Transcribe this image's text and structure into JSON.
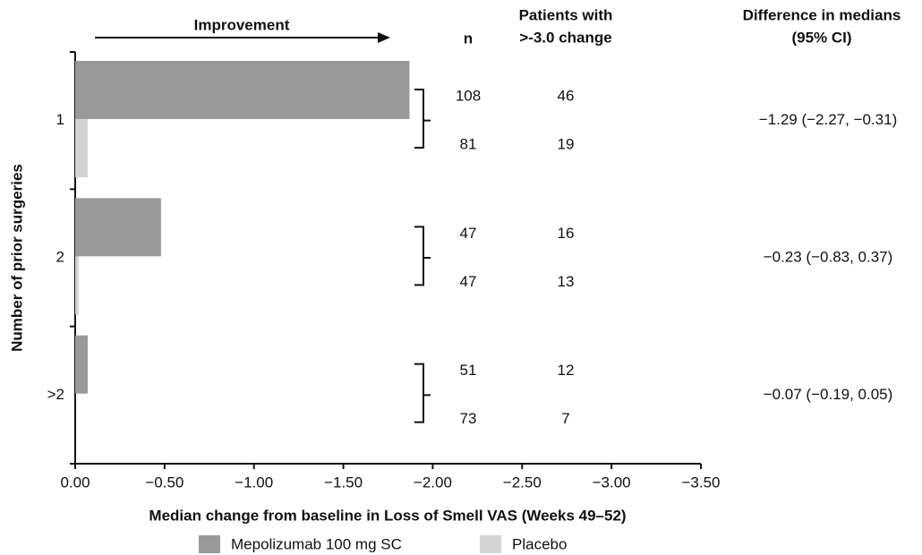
{
  "chart_data": {
    "type": "hbar",
    "annotation": "Improvement",
    "xlabel": "Median change from baseline in Loss of Smell VAS (Weeks 49–52)",
    "ylabel": "Number of prior surgeries",
    "categories": [
      "1",
      "2",
      ">2"
    ],
    "series": [
      {
        "name": "Mepolizumab 100 mg SC",
        "color": "#999999",
        "values": [
          -1.87,
          -0.48,
          -0.07
        ],
        "n": [
          108,
          47,
          51
        ],
        "responders": [
          46,
          16,
          12
        ]
      },
      {
        "name": "Placebo",
        "color": "#d3d3d3",
        "values": [
          -0.07,
          -0.02,
          0
        ],
        "n": [
          81,
          47,
          73
        ],
        "responders": [
          19,
          13,
          7
        ]
      }
    ],
    "n_header": "n",
    "responders_header": [
      "Patients with",
      ">-3.0 change"
    ],
    "difference_header": [
      "Difference in medians",
      "(95% CI)"
    ],
    "differences": [
      "−1.29 (−2.27, −0.31)",
      "−0.23 (−0.83, 0.37)",
      "−0.07 (−0.19, 0.05)"
    ],
    "xlim": [
      0,
      -3.5
    ],
    "xticks": [
      {
        "value": 0,
        "label": "0.00"
      },
      {
        "value": -0.5,
        "label": "−0.50"
      },
      {
        "value": -1,
        "label": "−1.00"
      },
      {
        "value": -1.5,
        "label": "−1.50"
      },
      {
        "value": -2,
        "label": "−2.00"
      },
      {
        "value": -2.5,
        "label": "−2.50"
      },
      {
        "value": -3,
        "label": "−3.00"
      },
      {
        "value": -3.5,
        "label": "−3.50"
      }
    ]
  }
}
